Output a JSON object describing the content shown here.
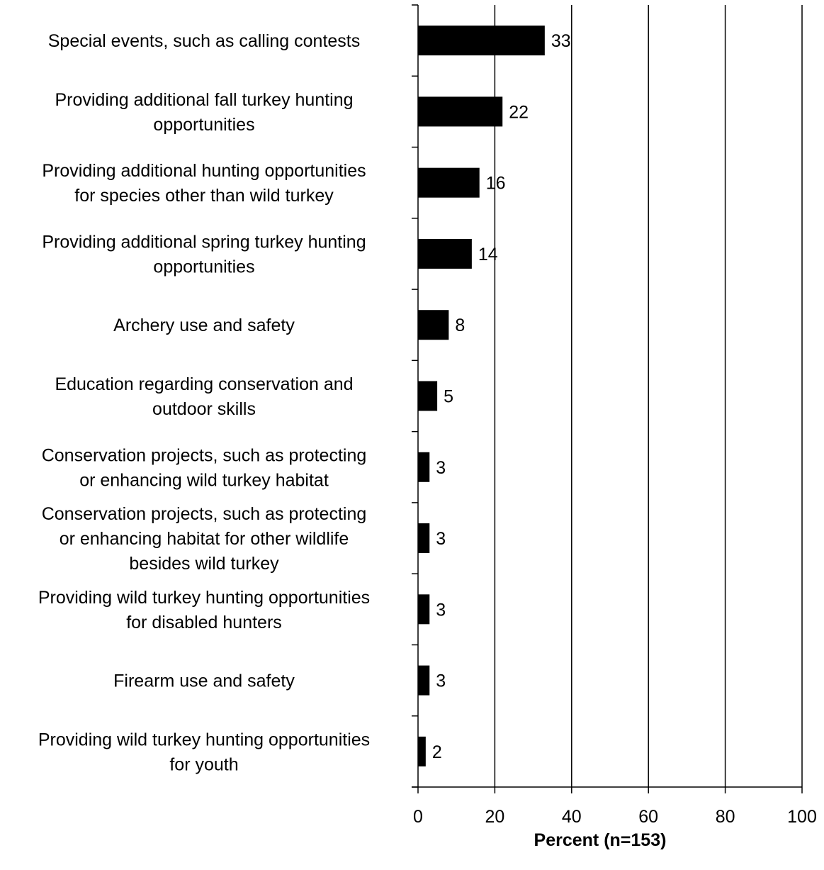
{
  "chart_data": {
    "type": "bar",
    "orientation": "horizontal",
    "categories": [
      [
        "Special events, such as calling contests"
      ],
      [
        "Providing additional fall turkey hunting",
        "opportunities"
      ],
      [
        "Providing additional hunting opportunities",
        "for species other than wild turkey"
      ],
      [
        "Providing additional spring turkey hunting",
        "opportunities"
      ],
      [
        "Archery use and safety"
      ],
      [
        "Education regarding conservation and",
        "outdoor skills"
      ],
      [
        "Conservation projects, such as protecting",
        "or enhancing wild turkey habitat"
      ],
      [
        "Conservation projects, such as protecting",
        "or enhancing habitat for other wildlife",
        "besides wild turkey"
      ],
      [
        "Providing wild turkey hunting opportunities",
        "for disabled hunters"
      ],
      [
        "Firearm use and safety"
      ],
      [
        "Providing wild turkey hunting opportunities",
        "for youth"
      ]
    ],
    "values": [
      33,
      22,
      16,
      14,
      8,
      5,
      3,
      3,
      3,
      3,
      2
    ],
    "data_labels": [
      "33",
      "22",
      "16",
      "14",
      "8",
      "5",
      "3",
      "3",
      "3",
      "3",
      "2"
    ],
    "xlabel": "Percent (n=153)",
    "ylabel": "",
    "xlim": [
      0,
      100
    ],
    "xticks": [
      0,
      20,
      40,
      60,
      80,
      100
    ],
    "xtick_labels": [
      "0",
      "20",
      "40",
      "60",
      "80",
      "100"
    ],
    "grid": "vertical",
    "legend": "none",
    "colors": {
      "bar": "#000000",
      "text": "#000000",
      "gridline": "#000000",
      "background": "#ffffff"
    }
  }
}
